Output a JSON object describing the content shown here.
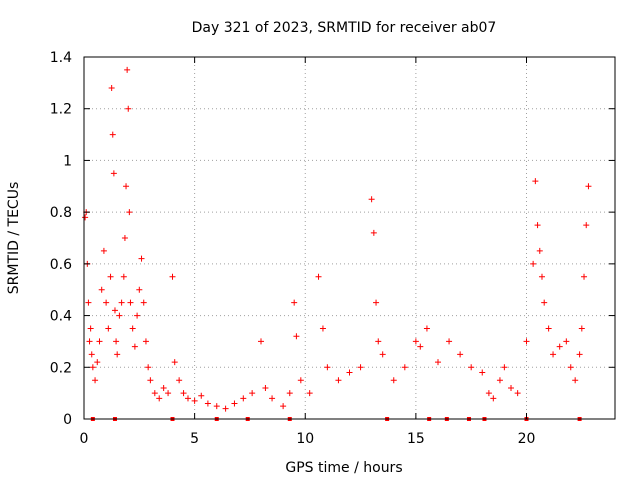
{
  "chart_data": {
    "type": "scatter",
    "title": "Day 321 of 2023, SRMTID for receiver ab07",
    "xlabel": "GPS time / hours",
    "ylabel": "SRMTID / TECUs",
    "xlim": [
      0,
      24
    ],
    "ylim": [
      0,
      1.4
    ],
    "xticks": [
      "0",
      "5",
      "10",
      "15",
      "20"
    ],
    "yticks": [
      "0",
      "0.2",
      "0.4",
      "0.6",
      "0.8",
      "1",
      "1.2",
      "1.4"
    ],
    "grid": true,
    "marker": "+",
    "color": "#ff0000",
    "series": [
      {
        "name": "SRMTID",
        "x": [
          0.05,
          0.1,
          0.15,
          0.2,
          0.25,
          0.3,
          0.35,
          0.4,
          0.5,
          0.6,
          0.7,
          0.8,
          0.9,
          1.0,
          1.1,
          1.2,
          1.25,
          1.3,
          1.35,
          1.4,
          1.45,
          1.5,
          1.6,
          1.7,
          1.8,
          1.85,
          1.9,
          1.95,
          2.0,
          2.05,
          2.1,
          2.2,
          2.3,
          2.4,
          2.5,
          2.6,
          2.7,
          2.8,
          2.9,
          3.0,
          3.2,
          3.4,
          3.6,
          3.8,
          4.0,
          4.1,
          4.3,
          4.5,
          4.7,
          5.0,
          5.3,
          5.6,
          6.0,
          6.4,
          6.8,
          7.2,
          7.6,
          8.0,
          8.2,
          8.5,
          9.0,
          9.3,
          9.5,
          9.6,
          9.8,
          10.2,
          10.6,
          10.8,
          11.0,
          11.5,
          12.0,
          12.5,
          13.0,
          13.1,
          13.2,
          13.3,
          13.5,
          14.0,
          14.5,
          15.0,
          15.2,
          15.5,
          16.0,
          16.5,
          17.0,
          17.5,
          18.0,
          18.3,
          18.5,
          18.8,
          19.0,
          19.3,
          19.6,
          20.0,
          20.3,
          20.4,
          20.5,
          20.6,
          20.7,
          20.8,
          21.0,
          21.2,
          21.5,
          21.8,
          22.0,
          22.2,
          22.4,
          22.5,
          22.6,
          22.7,
          22.8
        ],
        "y": [
          0.78,
          0.8,
          0.6,
          0.45,
          0.3,
          0.35,
          0.25,
          0.2,
          0.15,
          0.22,
          0.3,
          0.5,
          0.65,
          0.45,
          0.35,
          0.55,
          1.28,
          1.1,
          0.95,
          0.42,
          0.3,
          0.25,
          0.4,
          0.45,
          0.55,
          0.7,
          0.9,
          1.35,
          1.2,
          0.8,
          0.45,
          0.35,
          0.28,
          0.4,
          0.5,
          0.62,
          0.45,
          0.3,
          0.2,
          0.15,
          0.1,
          0.08,
          0.12,
          0.1,
          0.55,
          0.22,
          0.15,
          0.1,
          0.08,
          0.07,
          0.09,
          0.06,
          0.05,
          0.04,
          0.06,
          0.08,
          0.1,
          0.3,
          0.12,
          0.08,
          0.05,
          0.1,
          0.45,
          0.32,
          0.15,
          0.1,
          0.55,
          0.35,
          0.2,
          0.15,
          0.18,
          0.2,
          0.85,
          0.72,
          0.45,
          0.3,
          0.25,
          0.15,
          0.2,
          0.3,
          0.28,
          0.35,
          0.22,
          0.3,
          0.25,
          0.2,
          0.18,
          0.1,
          0.08,
          0.15,
          0.2,
          0.12,
          0.1,
          0.3,
          0.6,
          0.92,
          0.75,
          0.65,
          0.55,
          0.45,
          0.35,
          0.25,
          0.28,
          0.3,
          0.2,
          0.15,
          0.25,
          0.35,
          0.55,
          0.75,
          0.9
        ]
      }
    ],
    "baseline_markers_x": [
      0.4,
      1.4,
      4.0,
      6.0,
      7.4,
      9.3,
      13.7,
      15.6,
      16.4,
      17.4,
      18.1,
      20.0,
      22.4
    ]
  }
}
